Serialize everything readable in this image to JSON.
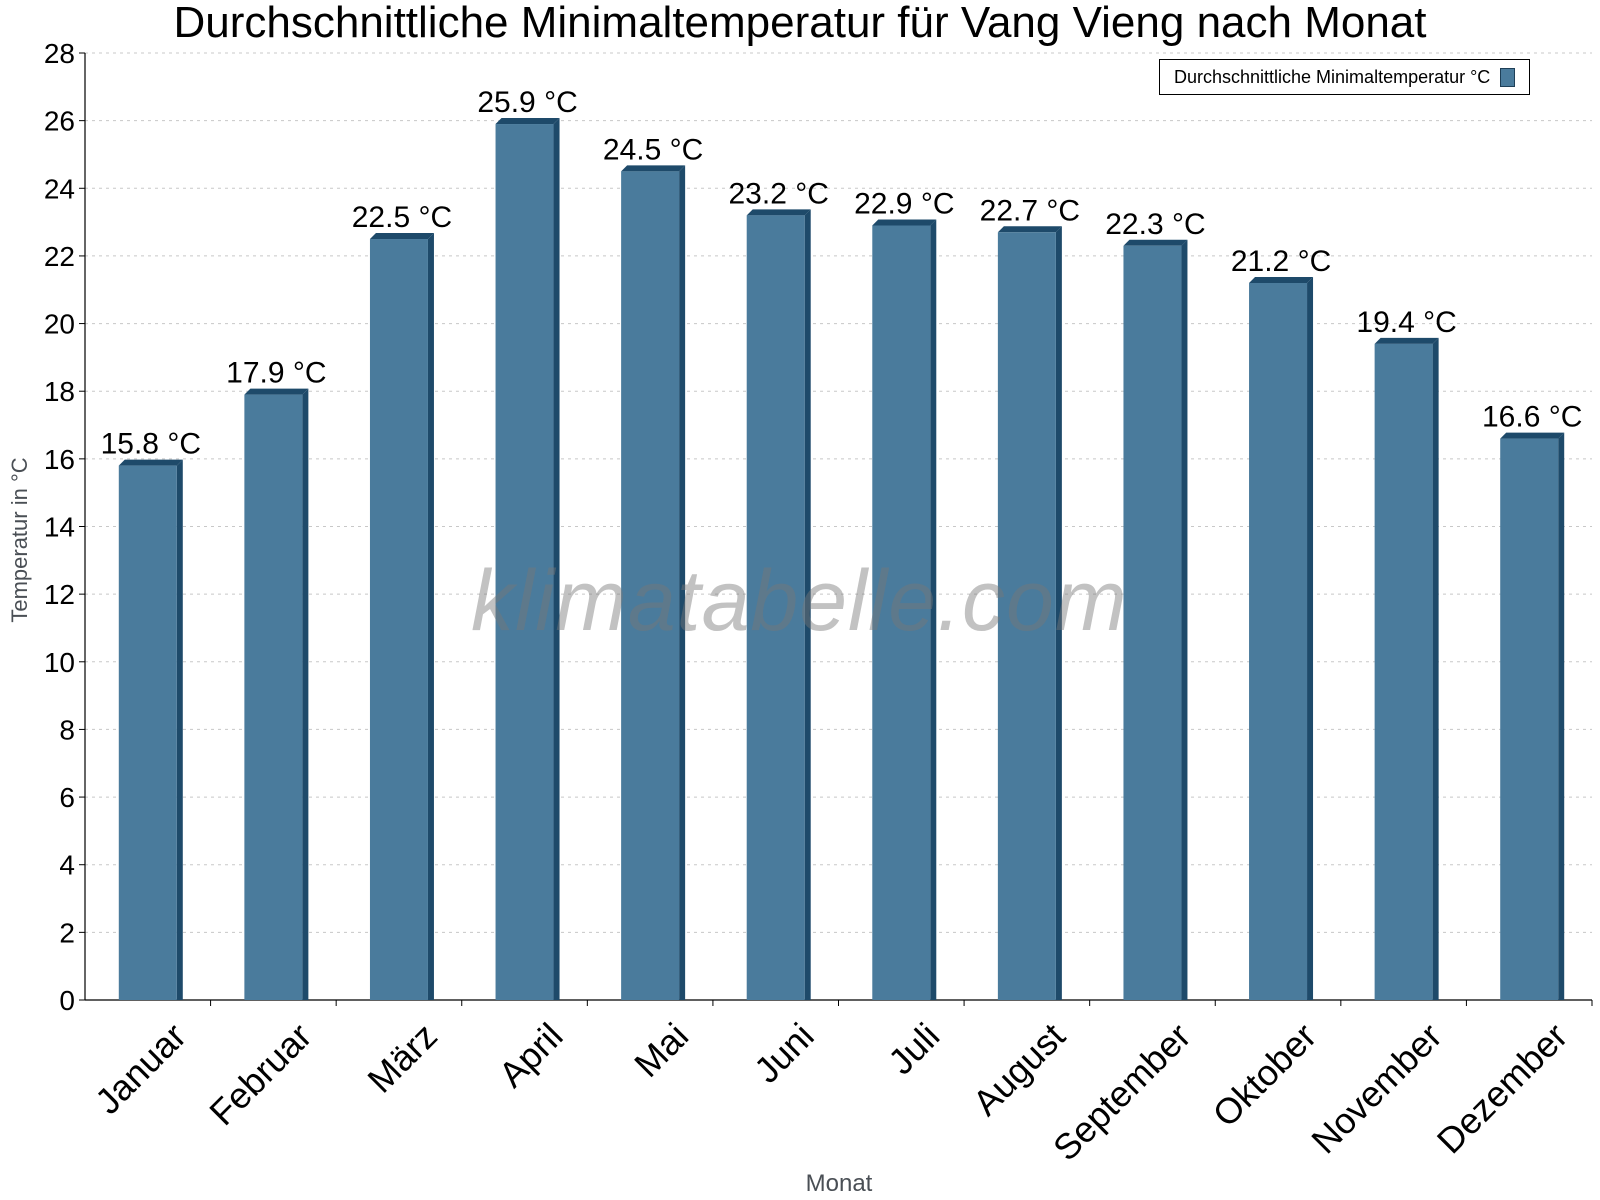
{
  "chart_data": {
    "type": "bar",
    "title": "Durchschnittliche Minimaltemperatur für Vang Vieng nach Monat",
    "xlabel": "Monat",
    "ylabel": "Temperatur in °C",
    "categories": [
      "Januar",
      "Februar",
      "März",
      "April",
      "Mai",
      "Juni",
      "Juli",
      "August",
      "September",
      "Oktober",
      "November",
      "Dezember"
    ],
    "series": [
      {
        "name": "Durchschnittliche Minimaltemperatur °C",
        "values": [
          15.8,
          17.9,
          22.5,
          25.9,
          24.5,
          23.2,
          22.9,
          22.7,
          22.3,
          21.2,
          19.4,
          16.6
        ],
        "color": "#4a7b9c"
      }
    ],
    "data_labels": [
      "15.8 °C",
      "17.9 °C",
      "22.5 °C",
      "25.9 °C",
      "24.5 °C",
      "23.2 °C",
      "22.9 °C",
      "22.7 °C",
      "22.3 °C",
      "21.2 °C",
      "19.4 °C",
      "16.6 °C"
    ],
    "ylim": [
      0,
      28
    ],
    "yticks": [
      "0",
      "2",
      "4",
      "6",
      "8",
      "10",
      "12",
      "14",
      "16",
      "18",
      "20",
      "22",
      "24",
      "26",
      "28"
    ],
    "grid": true,
    "legend_position": "top-right"
  },
  "watermark": "klimatabelle.com",
  "colors": {
    "bar": "#4a7b9c",
    "bar_side": "#1e4a6a",
    "grid": "#c8c8c8",
    "axis": "#000000"
  }
}
